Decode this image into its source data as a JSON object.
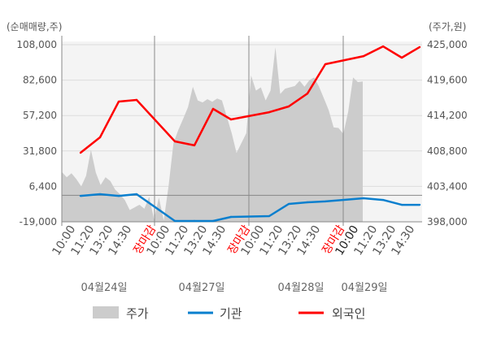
{
  "chart_data": {
    "type": "line",
    "left_axis_title": "(순매매량,주)",
    "right_axis_title": "(주가,원)",
    "left_ylim": [
      -19000,
      108000
    ],
    "right_ylim": [
      398000,
      425000
    ],
    "left_ticks": [
      "108,000",
      "82,600",
      "57,200",
      "31,800",
      "6,400",
      "-19,000"
    ],
    "left_tick_values": [
      108000,
      82600,
      57200,
      31800,
      6400,
      -19000
    ],
    "right_ticks": [
      "425,000",
      "419,600",
      "414,200",
      "408,800",
      "403,400",
      "398,000"
    ],
    "right_tick_values": [
      425000,
      419600,
      414200,
      408800,
      403400,
      398000
    ],
    "grid": true,
    "days": [
      {
        "date": "04월24일",
        "times": [
          "10:00",
          "11:20",
          "13:20",
          "14:30",
          "장마감"
        ]
      },
      {
        "date": "04월27일",
        "times": [
          "10:00",
          "11:20",
          "13:20",
          "14:30",
          "장마감"
        ]
      },
      {
        "date": "04월28일",
        "times": [
          "10:00",
          "11:20",
          "13:20",
          "14:30",
          "장마감"
        ]
      },
      {
        "date": "04월29일",
        "times": [
          "10:00",
          "11:20",
          "13:20",
          "14:30"
        ]
      }
    ],
    "close_label_color": "#ff0000",
    "series": [
      {
        "name": "주가",
        "kind": "area",
        "axis": "right",
        "color": "#cccccc",
        "values": [
          405600,
          404800,
          405400,
          404500,
          403400,
          405000,
          409000,
          405500,
          403600,
          404800,
          404200,
          402900,
          402200,
          401300,
          399800,
          400200,
          400600,
          400000,
          401800,
          398400,
          401700,
          398200,
          403500,
          410000,
          412000,
          413700,
          415500,
          418600,
          416500,
          416200,
          416700,
          416300,
          416800,
          416500,
          414000,
          411500,
          408500,
          410000,
          411500,
          420300,
          418000,
          418500,
          416500,
          418000,
          424600,
          417500,
          418300,
          418500,
          418700,
          419500,
          418600,
          419600,
          420000,
          418600,
          416800,
          415000,
          412400,
          412300,
          411400,
          414800,
          420000,
          419300,
          419400
        ]
      },
      {
        "name": "기관",
        "kind": "line",
        "axis": "left",
        "color": "#0a7fce",
        "values": [
          -400,
          800,
          -400,
          800,
          -18400,
          -18400,
          -18400,
          -15500,
          -14900,
          -6200,
          -5000,
          -4400,
          -2100,
          -3300,
          -6800,
          -6800
        ]
      },
      {
        "name": "외국인",
        "kind": "line",
        "axis": "left",
        "color": "#ff0000",
        "values": [
          30500,
          41600,
          67200,
          68400,
          38700,
          35800,
          62000,
          54400,
          59600,
          63700,
          73000,
          94000,
          99800,
          106800,
          98700,
          106300
        ]
      }
    ]
  },
  "legend": {
    "items": [
      {
        "label": "주가",
        "color": "#cccccc",
        "kind": "box"
      },
      {
        "label": "기관",
        "color": "#0a7fce",
        "kind": "line"
      },
      {
        "label": "외국인",
        "color": "#ff0000",
        "kind": "line"
      }
    ]
  }
}
